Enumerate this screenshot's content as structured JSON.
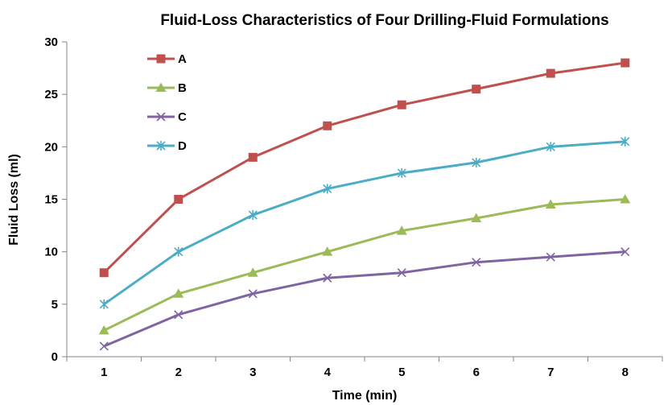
{
  "chart_data": {
    "type": "line",
    "title": "Fluid-Loss Characteristics of Four Drilling-Fluid Formulations",
    "xlabel": "Time (min)",
    "ylabel": "Fluid Loss (ml)",
    "x": [
      1,
      2,
      3,
      4,
      5,
      6,
      7,
      8
    ],
    "ylim": [
      0,
      30
    ],
    "yticks": [
      0,
      5,
      10,
      15,
      20,
      25,
      30
    ],
    "grid": false,
    "legend_position": "top-left",
    "series": [
      {
        "name": "A",
        "color": "#c0504d",
        "marker": "square",
        "values": [
          8,
          15,
          19,
          22,
          24,
          25.5,
          27,
          28
        ]
      },
      {
        "name": "B",
        "color": "#9bbb59",
        "marker": "triangle",
        "values": [
          2.5,
          6,
          8,
          10,
          12,
          13.2,
          14.5,
          15
        ]
      },
      {
        "name": "C",
        "color": "#8064a2",
        "marker": "x",
        "values": [
          1,
          4,
          6,
          7.5,
          8,
          9,
          9.5,
          10
        ]
      },
      {
        "name": "D",
        "color": "#4bacc6",
        "marker": "star",
        "values": [
          5,
          10,
          13.5,
          16,
          17.5,
          18.5,
          20,
          20.5
        ]
      }
    ]
  }
}
